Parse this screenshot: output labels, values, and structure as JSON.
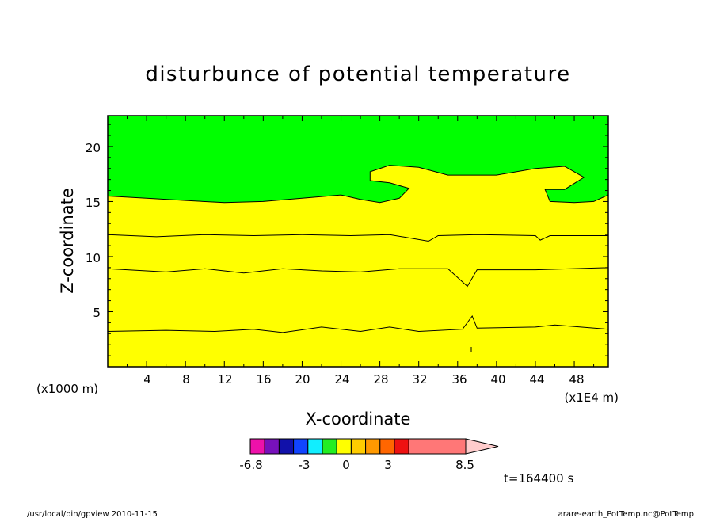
{
  "chart_data": {
    "type": "contour",
    "title": "disturbunce of potential temperature",
    "xlabel": "X-coordinate",
    "ylabel": "Z-coordinate",
    "x_unit_label": "(x1E4 m)",
    "y_unit_label": "(x1000 m)",
    "xlim": [
      0,
      51.5
    ],
    "ylim": [
      0,
      22.8
    ],
    "x_ticks": [
      "4",
      "8",
      "12",
      "16",
      "20",
      "24",
      "28",
      "32",
      "36",
      "40",
      "44",
      "48"
    ],
    "y_ticks": [
      "5",
      "10",
      "15",
      "20"
    ],
    "bands": [
      {
        "name": "lower",
        "color": "#ffcc00",
        "boundary": [
          [
            0,
            3.2
          ],
          [
            6,
            3.3
          ],
          [
            11,
            3.2
          ],
          [
            15,
            3.4
          ],
          [
            18,
            3.1
          ],
          [
            22,
            3.6
          ],
          [
            26,
            3.2
          ],
          [
            29,
            3.6
          ],
          [
            32,
            3.2
          ],
          [
            36.5,
            3.4
          ],
          [
            37.5,
            4.6
          ],
          [
            38,
            3.5
          ],
          [
            44,
            3.6
          ],
          [
            46,
            3.8
          ],
          [
            51.5,
            3.4
          ]
        ]
      },
      {
        "name": "middle",
        "color": "#ff9900",
        "boundary": [
          [
            0,
            8.9
          ],
          [
            6,
            8.6
          ],
          [
            10,
            8.9
          ],
          [
            14,
            8.5
          ],
          [
            18,
            8.9
          ],
          [
            22,
            8.7
          ],
          [
            26,
            8.6
          ],
          [
            30,
            8.9
          ],
          [
            35,
            8.9
          ],
          [
            37,
            7.3
          ],
          [
            38,
            8.8
          ],
          [
            44,
            8.8
          ],
          [
            51.5,
            9.0
          ]
        ]
      },
      {
        "name": "upper",
        "color": "#ffcc00",
        "boundary": [
          [
            0,
            12.0
          ],
          [
            5,
            11.8
          ],
          [
            10,
            12.0
          ],
          [
            15,
            11.9
          ],
          [
            20,
            12.0
          ],
          [
            25,
            11.9
          ],
          [
            29,
            12.0
          ],
          [
            33,
            11.4
          ],
          [
            34,
            11.9
          ],
          [
            38,
            12.0
          ],
          [
            44,
            11.9
          ],
          [
            44.5,
            11.5
          ],
          [
            45.5,
            11.9
          ],
          [
            51.5,
            11.9
          ]
        ]
      },
      {
        "name": "top",
        "color": "#ffff00",
        "boundary": [
          [
            0,
            15.5
          ],
          [
            4,
            15.3
          ],
          [
            8,
            15.1
          ],
          [
            12,
            14.9
          ],
          [
            16,
            15.0
          ],
          [
            20,
            15.3
          ],
          [
            24,
            15.6
          ],
          [
            26,
            15.2
          ],
          [
            28,
            14.9
          ],
          [
            30,
            15.3
          ],
          [
            31,
            16.2
          ],
          [
            29,
            16.7
          ],
          [
            27,
            16.9
          ],
          [
            27,
            17.7
          ],
          [
            29,
            18.3
          ],
          [
            32,
            18.1
          ],
          [
            35,
            17.4
          ],
          [
            40,
            17.4
          ],
          [
            44,
            18.0
          ],
          [
            47,
            18.2
          ],
          [
            49,
            17.2
          ],
          [
            47,
            16.1
          ],
          [
            45,
            16.1
          ],
          [
            45.5,
            15.0
          ],
          [
            48,
            14.9
          ],
          [
            50,
            15.0
          ],
          [
            51.5,
            15.6
          ]
        ]
      }
    ],
    "above_top_color": "#00ff00",
    "colorbar": {
      "colors": [
        "#ee11aa",
        "#7711bb",
        "#1111aa",
        "#1144ff",
        "#11eeff",
        "#22ee22",
        "#ffff00",
        "#ffcc00",
        "#ff9900",
        "#ff6600",
        "#ee1111",
        "#ff7777"
      ],
      "tick_labels": [
        "-6.8",
        "-3",
        "0",
        "3",
        "8.5"
      ]
    },
    "timestamp": "t=164400 s"
  },
  "footer": {
    "left": "/usr/local/bin/gpview  2010-11-15",
    "right": "arare-earth_PotTemp.nc@PotTemp"
  }
}
